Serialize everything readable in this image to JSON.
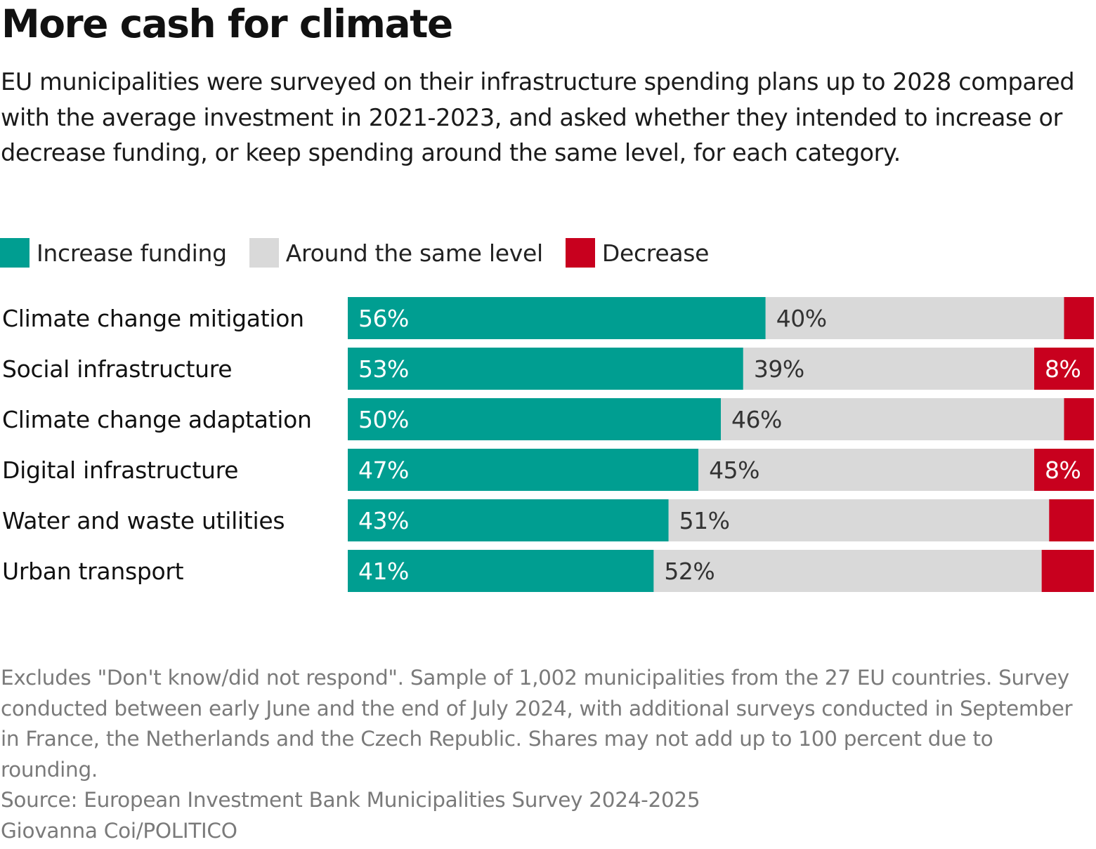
{
  "chart_data": {
    "type": "bar",
    "orientation": "horizontal",
    "stacked": true,
    "title": "More cash for climate",
    "subtitle": "EU municipalities were surveyed on their infrastructure spending plans up to 2028 compared with the average investment in 2021-2023, and asked whether they intended to increase or decrease funding, or keep spending around the same level, for each category.",
    "categories": [
      "Climate change mitigation",
      "Social infrastructure",
      "Climate change adaptation",
      "Digital infrastructure",
      "Water and waste utilities",
      "Urban transport"
    ],
    "series": [
      {
        "name": "Increase funding",
        "color": "#009e91",
        "text_color": "#ffffff",
        "values": [
          56,
          53,
          50,
          47,
          43,
          41
        ],
        "labels": [
          "56%",
          "53%",
          "50%",
          "47%",
          "43%",
          "41%"
        ]
      },
      {
        "name": "Around the same level",
        "color": "#d9d9d9",
        "text_color": "#333333",
        "values": [
          40,
          39,
          46,
          45,
          51,
          52
        ],
        "labels": [
          "40%",
          "39%",
          "46%",
          "45%",
          "51%",
          "52%"
        ]
      },
      {
        "name": "Decrease",
        "color": "#c8001e",
        "text_color": "#ffffff",
        "values": [
          4,
          8,
          4,
          8,
          6,
          7
        ],
        "labels": [
          "",
          "8%",
          "",
          "8%",
          "",
          ""
        ]
      }
    ],
    "xlim": [
      0,
      100
    ],
    "xlabel": "",
    "ylabel": "",
    "grid": false,
    "legend_position": "top-left",
    "notes": "Excludes \"Don't know/did not respond\". Sample of 1,002 municipalities from the 27 EU countries. Survey conducted between early June and the end of July 2024, with additional surveys conducted in September in France, the Netherlands and the Czech Republic. Shares may not add up to 100 percent due to rounding.",
    "source": "Source: European Investment Bank Municipalities Survey 2024-2025",
    "credit": "Giovanna Coi/POLITICO"
  }
}
